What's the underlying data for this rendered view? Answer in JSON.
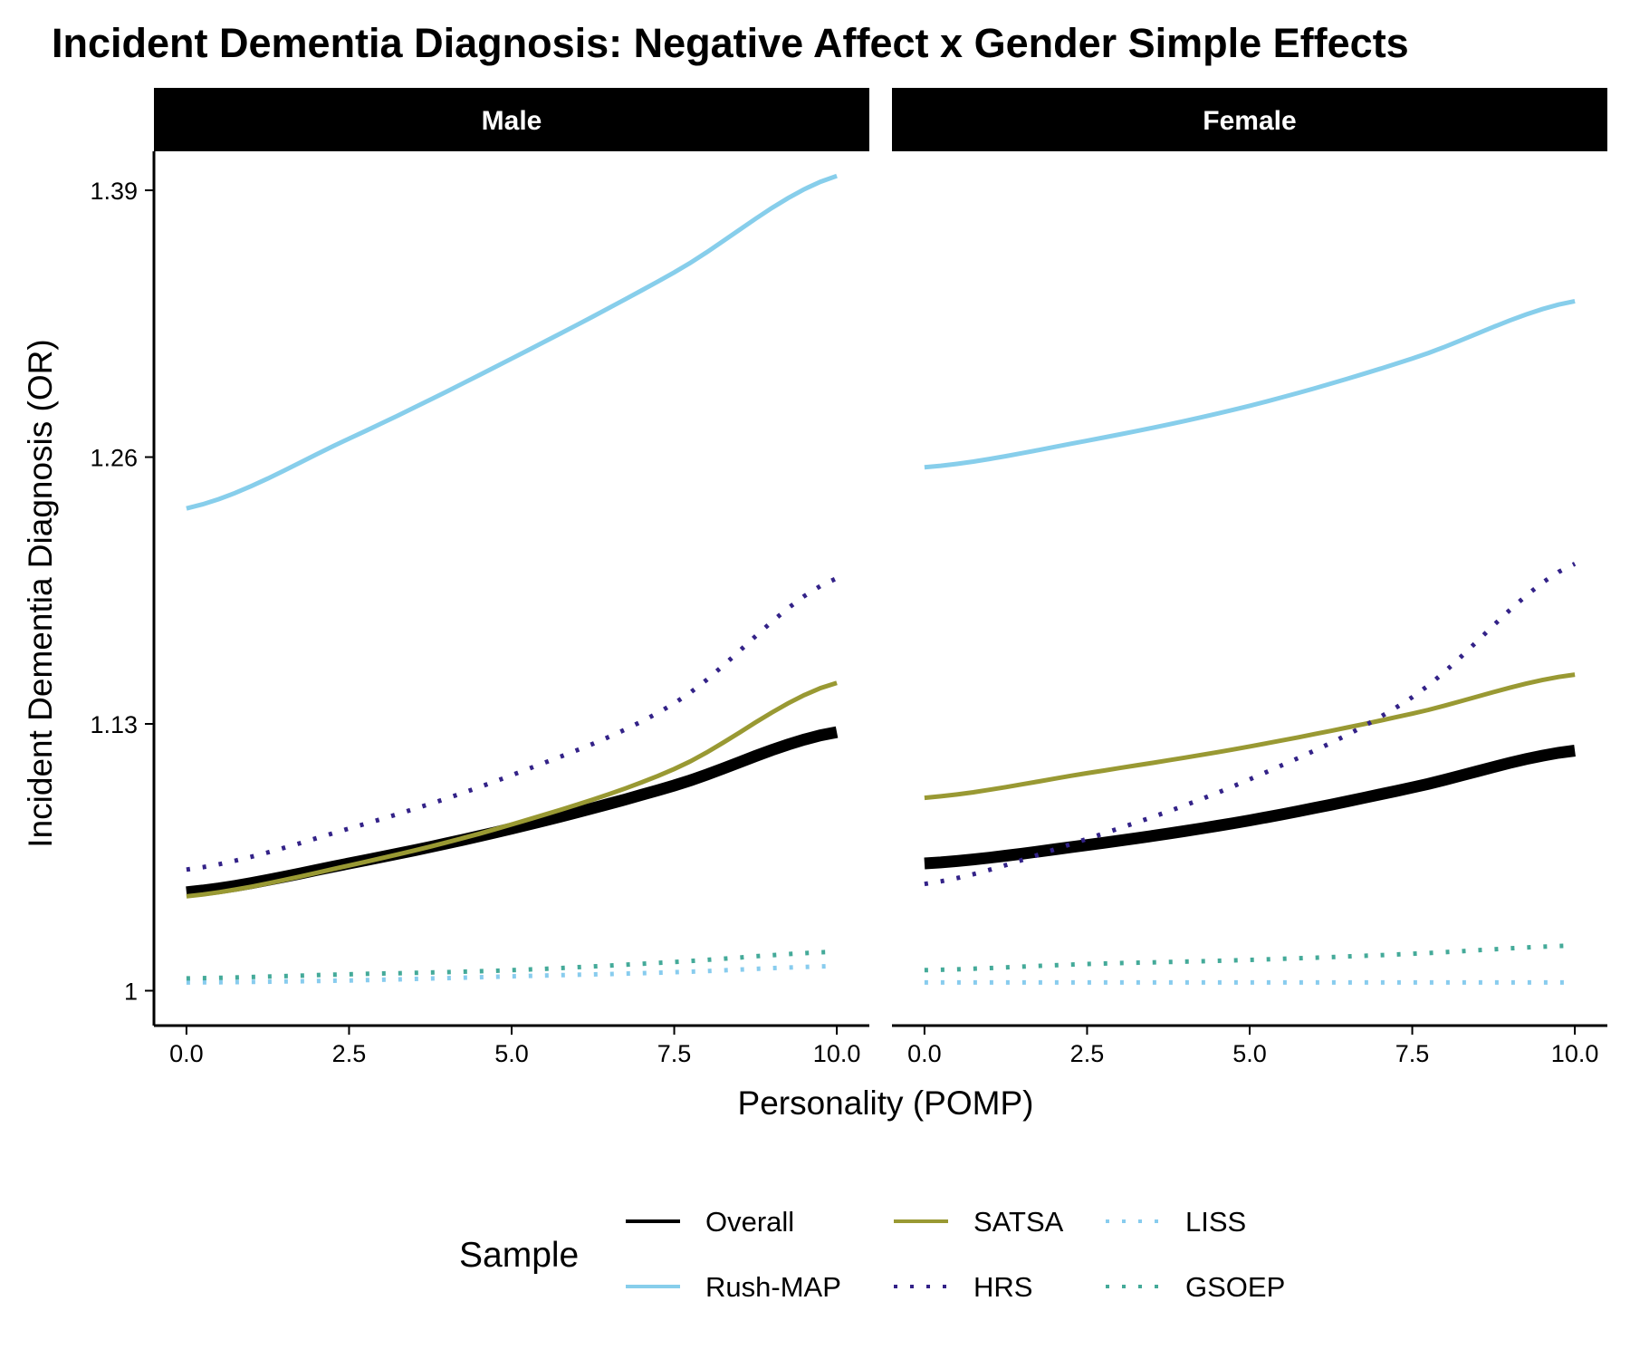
{
  "chart_data": {
    "type": "line",
    "title": "Incident Dementia Diagnosis: Negative Affect x Gender Simple Effects",
    "xlabel": "Personality (POMP)",
    "ylabel": "Incident Dementia Diagnosis (OR)",
    "xlim": [
      -0.5,
      10.5
    ],
    "ylim": [
      0.983,
      1.409
    ],
    "x_ticks": [
      0,
      2.5,
      5,
      7.5,
      10
    ],
    "x_tick_labels": [
      "0.0",
      "2.5",
      "5.0",
      "7.5",
      "10.0"
    ],
    "y_ticks": [
      1,
      1.13,
      1.26,
      1.39
    ],
    "y_tick_labels": [
      "1",
      "1.13",
      "1.26",
      "1.39"
    ],
    "legend": {
      "title": "Sample",
      "position": "bottom"
    },
    "facets": [
      {
        "name": "Male",
        "series": [
          {
            "name": "Overall",
            "color": "#000000",
            "dash": "solid",
            "width": 13,
            "x": [
              0,
              2.5,
              5,
              7.5,
              10
            ],
            "y": [
              1.048,
              1.062,
              1.079,
              1.1,
              1.126
            ]
          },
          {
            "name": "Rush-MAP",
            "color": "#87CEEB",
            "dash": "solid",
            "width": 5,
            "x": [
              0,
              2.5,
              5,
              7.5,
              10
            ],
            "y": [
              1.235,
              1.269,
              1.308,
              1.35,
              1.397
            ]
          },
          {
            "name": "SATSA",
            "color": "#999933",
            "dash": "solid",
            "width": 5,
            "x": [
              0,
              2.5,
              5,
              7.5,
              10
            ],
            "y": [
              1.046,
              1.061,
              1.081,
              1.108,
              1.15
            ]
          },
          {
            "name": "HRS",
            "color": "#332288",
            "dash": "dotted",
            "width": 5,
            "x": [
              0,
              2.5,
              5,
              7.5,
              10
            ],
            "y": [
              1.059,
              1.079,
              1.105,
              1.14,
              1.201
            ]
          },
          {
            "name": "LISS",
            "color": "#88CCEE",
            "dash": "dotted",
            "width": 5,
            "x": [
              0,
              2.5,
              5,
              7.5,
              10
            ],
            "y": [
              1.004,
              1.005,
              1.007,
              1.009,
              1.012
            ]
          },
          {
            "name": "GSOEP",
            "color": "#44AA99",
            "dash": "dotted",
            "width": 5,
            "x": [
              0,
              2.5,
              5,
              7.5,
              10
            ],
            "y": [
              1.006,
              1.008,
              1.01,
              1.014,
              1.019
            ]
          }
        ]
      },
      {
        "name": "Female",
        "series": [
          {
            "name": "Overall",
            "color": "#000000",
            "dash": "solid",
            "width": 13,
            "x": [
              0,
              2.5,
              5,
              7.5,
              10
            ],
            "y": [
              1.062,
              1.071,
              1.083,
              1.099,
              1.117
            ]
          },
          {
            "name": "Rush-MAP",
            "color": "#87CEEB",
            "dash": "solid",
            "width": 5,
            "x": [
              0,
              2.5,
              5,
              7.5,
              10
            ],
            "y": [
              1.255,
              1.268,
              1.285,
              1.308,
              1.336
            ]
          },
          {
            "name": "SATSA",
            "color": "#999933",
            "dash": "solid",
            "width": 5,
            "x": [
              0,
              2.5,
              5,
              7.5,
              10
            ],
            "y": [
              1.094,
              1.106,
              1.119,
              1.135,
              1.154
            ]
          },
          {
            "name": "HRS",
            "color": "#332288",
            "dash": "dotted",
            "width": 5,
            "x": [
              0,
              2.5,
              5,
              7.5,
              10
            ],
            "y": [
              1.052,
              1.074,
              1.103,
              1.143,
              1.208
            ]
          },
          {
            "name": "LISS",
            "color": "#88CCEE",
            "dash": "dotted",
            "width": 5,
            "x": [
              0,
              2.5,
              5,
              7.5,
              10
            ],
            "y": [
              1.004,
              1.004,
              1.004,
              1.004,
              1.004
            ]
          },
          {
            "name": "GSOEP",
            "color": "#44AA99",
            "dash": "dotted",
            "width": 5,
            "x": [
              0,
              2.5,
              5,
              7.5,
              10
            ],
            "y": [
              1.01,
              1.013,
              1.015,
              1.018,
              1.022
            ]
          }
        ]
      }
    ]
  }
}
